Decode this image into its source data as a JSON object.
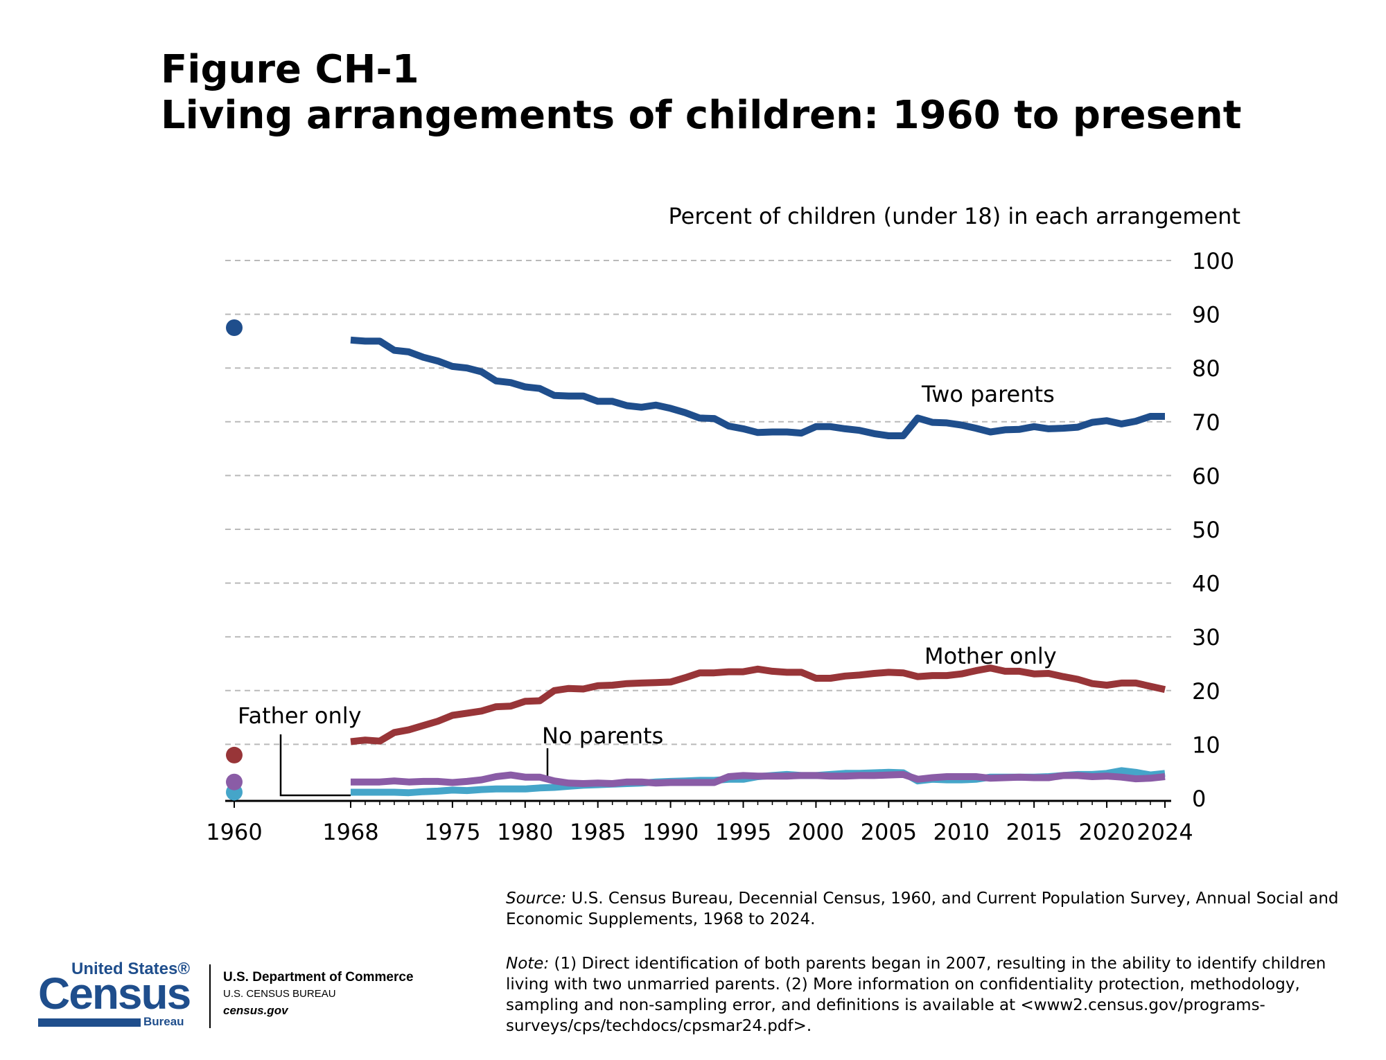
{
  "figure": {
    "title_line1": "Figure CH-1",
    "title_line2": "Living arrangements of children: 1960 to present"
  },
  "chart_data": {
    "type": "line",
    "ylabel": "Percent of children (under 18) in each arrangement",
    "ylim": [
      0,
      100
    ],
    "y_ticks": [
      0,
      10,
      20,
      30,
      40,
      50,
      60,
      70,
      80,
      90,
      100
    ],
    "x_tick_labels": [
      "1960",
      "1968",
      "1975",
      "1980",
      "1985",
      "1990",
      "1995",
      "2000",
      "2005",
      "2010",
      "2015",
      "2020",
      "2024"
    ],
    "x_range": [
      1968,
      2024
    ],
    "grid": true,
    "note_1960": "1960 values shown as separate points",
    "series": [
      {
        "name": "Two parents",
        "color": "#1f4e8c",
        "point_1960": 87.5,
        "x": [
          1968,
          1969,
          1970,
          1971,
          1972,
          1973,
          1974,
          1975,
          1976,
          1977,
          1978,
          1979,
          1980,
          1981,
          1982,
          1983,
          1984,
          1985,
          1986,
          1987,
          1988,
          1989,
          1990,
          1991,
          1992,
          1993,
          1994,
          1995,
          1996,
          1997,
          1998,
          1999,
          2000,
          2001,
          2002,
          2003,
          2004,
          2005,
          2006,
          2007,
          2008,
          2009,
          2010,
          2011,
          2012,
          2013,
          2014,
          2015,
          2016,
          2017,
          2018,
          2019,
          2020,
          2021,
          2022,
          2023,
          2024
        ],
        "values": [
          85.2,
          85.0,
          85.0,
          83.3,
          83.0,
          82.0,
          81.3,
          80.3,
          80.0,
          79.3,
          77.6,
          77.3,
          76.5,
          76.2,
          74.9,
          74.8,
          74.8,
          73.8,
          73.8,
          73.0,
          72.7,
          73.1,
          72.5,
          71.7,
          70.7,
          70.6,
          69.2,
          68.7,
          68.0,
          68.1,
          68.1,
          67.9,
          69.1,
          69.1,
          68.7,
          68.4,
          67.8,
          67.4,
          67.4,
          70.7,
          69.9,
          69.8,
          69.4,
          68.8,
          68.1,
          68.5,
          68.6,
          69.1,
          68.7,
          68.8,
          69.0,
          69.9,
          70.2,
          69.6,
          70.1,
          71.0,
          71.0
        ]
      },
      {
        "name": "Mother only",
        "color": "#983538",
        "point_1960": 8.0,
        "x": [
          1968,
          1969,
          1970,
          1971,
          1972,
          1973,
          1974,
          1975,
          1976,
          1977,
          1978,
          1979,
          1980,
          1981,
          1982,
          1983,
          1984,
          1985,
          1986,
          1987,
          1988,
          1989,
          1990,
          1991,
          1992,
          1993,
          1994,
          1995,
          1996,
          1997,
          1998,
          1999,
          2000,
          2001,
          2002,
          2003,
          2004,
          2005,
          2006,
          2007,
          2008,
          2009,
          2010,
          2011,
          2012,
          2013,
          2014,
          2015,
          2016,
          2017,
          2018,
          2019,
          2020,
          2021,
          2022,
          2023,
          2024
        ],
        "values": [
          10.5,
          10.8,
          10.6,
          12.2,
          12.7,
          13.5,
          14.3,
          15.4,
          15.8,
          16.2,
          17.0,
          17.1,
          18.0,
          18.1,
          20.0,
          20.4,
          20.3,
          20.9,
          21.0,
          21.3,
          21.4,
          21.5,
          21.6,
          22.4,
          23.3,
          23.3,
          23.5,
          23.5,
          24.0,
          23.6,
          23.4,
          23.4,
          22.3,
          22.3,
          22.7,
          22.9,
          23.2,
          23.4,
          23.3,
          22.6,
          22.8,
          22.8,
          23.1,
          23.7,
          24.2,
          23.6,
          23.6,
          23.1,
          23.2,
          22.6,
          22.1,
          21.3,
          21.0,
          21.4,
          21.4,
          20.8,
          20.2
        ]
      },
      {
        "name": "Father only",
        "color": "#45a5c9",
        "point_1960": 1.1,
        "x": [
          1968,
          1969,
          1970,
          1971,
          1972,
          1973,
          1974,
          1975,
          1976,
          1977,
          1978,
          1979,
          1980,
          1981,
          1982,
          1983,
          1984,
          1985,
          1986,
          1987,
          1988,
          1989,
          1990,
          1991,
          1992,
          1993,
          1994,
          1995,
          1996,
          1997,
          1998,
          1999,
          2000,
          2001,
          2002,
          2003,
          2004,
          2005,
          2006,
          2007,
          2008,
          2009,
          2010,
          2011,
          2012,
          2013,
          2014,
          2015,
          2016,
          2017,
          2018,
          2019,
          2020,
          2021,
          2022,
          2023,
          2024
        ],
        "values": [
          1.1,
          1.1,
          1.1,
          1.1,
          1.0,
          1.2,
          1.3,
          1.5,
          1.4,
          1.6,
          1.7,
          1.7,
          1.7,
          1.9,
          2.0,
          2.2,
          2.4,
          2.5,
          2.6,
          2.7,
          2.8,
          3.0,
          3.1,
          3.2,
          3.3,
          3.3,
          3.5,
          3.5,
          4.0,
          4.2,
          4.4,
          4.2,
          4.2,
          4.4,
          4.6,
          4.6,
          4.7,
          4.8,
          4.7,
          3.2,
          3.5,
          3.4,
          3.4,
          3.5,
          3.9,
          3.9,
          3.9,
          3.9,
          4.0,
          4.2,
          4.4,
          4.4,
          4.6,
          5.1,
          4.8,
          4.3,
          4.6
        ]
      },
      {
        "name": "No parents",
        "color": "#8a5ca6",
        "point_1960": 3.0,
        "x": [
          1968,
          1969,
          1970,
          1971,
          1972,
          1973,
          1974,
          1975,
          1976,
          1977,
          1978,
          1979,
          1980,
          1981,
          1982,
          1983,
          1984,
          1985,
          1986,
          1987,
          1988,
          1989,
          1990,
          1991,
          1992,
          1993,
          1994,
          1995,
          1996,
          1997,
          1998,
          1999,
          2000,
          2001,
          2002,
          2003,
          2004,
          2005,
          2006,
          2007,
          2008,
          2009,
          2010,
          2011,
          2012,
          2013,
          2014,
          2015,
          2016,
          2017,
          2018,
          2019,
          2020,
          2021,
          2022,
          2023,
          2024
        ],
        "values": [
          3.0,
          3.0,
          3.0,
          3.2,
          3.0,
          3.1,
          3.1,
          2.9,
          3.1,
          3.4,
          4.0,
          4.3,
          3.9,
          3.9,
          3.2,
          2.8,
          2.7,
          2.8,
          2.7,
          3.0,
          3.0,
          2.8,
          2.9,
          2.9,
          2.9,
          2.9,
          4.0,
          4.2,
          4.1,
          4.1,
          4.1,
          4.2,
          4.2,
          4.1,
          4.1,
          4.2,
          4.2,
          4.3,
          4.4,
          3.5,
          3.8,
          4.0,
          4.0,
          4.0,
          3.7,
          3.8,
          3.9,
          3.8,
          3.8,
          4.2,
          4.2,
          4.0,
          4.1,
          3.9,
          3.6,
          3.7,
          4.0
        ]
      }
    ],
    "annotations": {
      "two_parents": "Two parents",
      "mother_only": "Mother only",
      "father_only": "Father only",
      "no_parents": "No parents"
    }
  },
  "source": {
    "label": "Source:",
    "text": " U.S. Census Bureau, Decennial Census, 1960, and Current Population Survey, Annual Social and Economic Supplements, 1968 to 2024."
  },
  "note": {
    "label": "Note:",
    "text": " (1) Direct identification of both parents began in 2007, resulting in the ability to identify children living with two unmarried parents. (2) More information on confidentiality protection, methodology, sampling and non-sampling error, and definitions is available at <www2.census.gov/programs-surveys/cps/techdocs/cpsmar24.pdf>."
  },
  "logo": {
    "line1": "United States®",
    "main": "Census",
    "bureau": "Bureau"
  },
  "department": {
    "line1": "U.S. Department of Commerce",
    "line2": "U.S. CENSUS BUREAU",
    "line3": "census.gov"
  }
}
